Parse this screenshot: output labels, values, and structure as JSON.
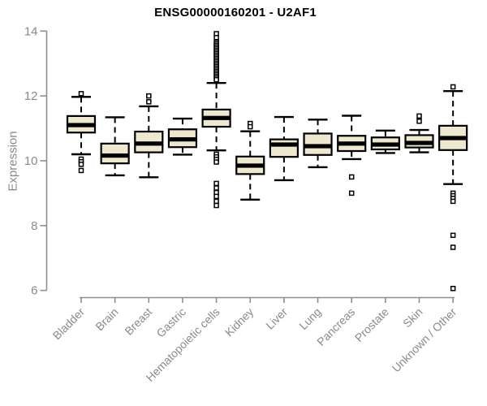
{
  "chart_data": {
    "type": "boxplot",
    "title": "ENSG00000160201 - U2AF1",
    "ylabel": "Expression",
    "xlabel": "",
    "ylim": [
      6,
      14
    ],
    "yticks": [
      14,
      12,
      10,
      8,
      6
    ],
    "grid": false,
    "legend": "none",
    "categories": [
      "Bladder",
      "Brain",
      "Breast",
      "Gastric",
      "Hematopoietic cells",
      "Kidney",
      "Liver",
      "Lung",
      "Pancreas",
      "Prostate",
      "Skin",
      "Unknown / Other"
    ],
    "boxes": [
      {
        "category": "Bladder",
        "whisker_low": 10.2,
        "q1": 10.87,
        "median": 11.1,
        "q3": 11.38,
        "whisker_high": 11.97,
        "outliers": [
          12.07,
          10.05,
          9.97,
          9.89,
          9.7
        ]
      },
      {
        "category": "Brain",
        "whisker_low": 9.55,
        "q1": 9.92,
        "median": 10.16,
        "q3": 10.53,
        "whisker_high": 11.34,
        "outliers": []
      },
      {
        "category": "Breast",
        "whisker_low": 9.49,
        "q1": 10.26,
        "median": 10.53,
        "q3": 10.9,
        "whisker_high": 11.68,
        "outliers": [
          12.0,
          11.82
        ]
      },
      {
        "category": "Gastric",
        "whisker_low": 10.19,
        "q1": 10.42,
        "median": 10.66,
        "q3": 10.97,
        "whisker_high": 11.3,
        "outliers": []
      },
      {
        "category": "Hematopoietic cells",
        "whisker_low": 10.32,
        "q1": 11.05,
        "median": 11.32,
        "q3": 11.58,
        "whisker_high": 12.4,
        "outliers": [
          13.92,
          13.8,
          13.65,
          13.6,
          13.55,
          13.5,
          13.45,
          13.4,
          13.35,
          13.3,
          13.25,
          13.2,
          13.15,
          13.1,
          13.05,
          13.0,
          12.95,
          12.9,
          12.85,
          12.8,
          12.75,
          12.7,
          12.65,
          12.6,
          12.55,
          12.5,
          10.2,
          10.12,
          10.04,
          9.96,
          9.3,
          9.16,
          9.02,
          8.9,
          8.75,
          8.62
        ]
      },
      {
        "category": "Kidney",
        "whisker_low": 8.8,
        "q1": 9.59,
        "median": 9.85,
        "q3": 10.13,
        "whisker_high": 10.91,
        "outliers": [
          11.15,
          11.05
        ]
      },
      {
        "category": "Liver",
        "whisker_low": 9.4,
        "q1": 10.12,
        "median": 10.5,
        "q3": 10.66,
        "whisker_high": 11.35,
        "outliers": []
      },
      {
        "category": "Lung",
        "whisker_low": 9.8,
        "q1": 10.18,
        "median": 10.45,
        "q3": 10.84,
        "whisker_high": 11.27,
        "outliers": []
      },
      {
        "category": "Pancreas",
        "whisker_low": 10.05,
        "q1": 10.3,
        "median": 10.53,
        "q3": 10.77,
        "whisker_high": 11.39,
        "outliers": [
          9.5,
          9.0
        ]
      },
      {
        "category": "Prostate",
        "whisker_low": 10.24,
        "q1": 10.35,
        "median": 10.5,
        "q3": 10.72,
        "whisker_high": 10.93,
        "outliers": []
      },
      {
        "category": "Skin",
        "whisker_low": 10.26,
        "q1": 10.41,
        "median": 10.55,
        "q3": 10.79,
        "whisker_high": 10.95,
        "outliers": [
          11.38,
          11.22
        ]
      },
      {
        "category": "Unknown / Other",
        "whisker_low": 9.28,
        "q1": 10.33,
        "median": 10.7,
        "q3": 11.08,
        "whisker_high": 12.15,
        "outliers": [
          12.28,
          9.0,
          8.92,
          8.84,
          8.75,
          7.7,
          7.33,
          6.06
        ]
      }
    ]
  },
  "colors": {
    "box_fill": "#EDE8CF",
    "box_border": "#000000",
    "median": "#000000",
    "whisker": "#000000",
    "outlier_stroke": "#000000",
    "outlier_fill": "#FFFFFF",
    "axis": "#8F8F8F",
    "tick_label": "#8A8A8A",
    "title": "#000000",
    "background": "#FFFFFF"
  }
}
